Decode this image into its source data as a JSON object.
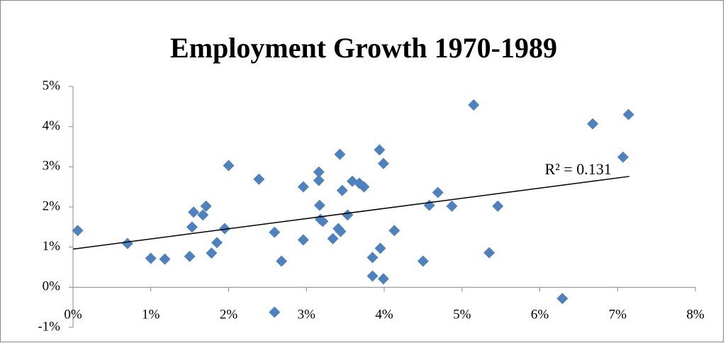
{
  "chart_data": {
    "type": "scatter",
    "title": "Employment Growth 1970-1989",
    "series": [
      {
        "color": "#4f81bd",
        "x": [
          0.06,
          0.7,
          1.0,
          1.18,
          1.5,
          1.53,
          1.55,
          1.67,
          1.71,
          1.78,
          1.85,
          1.95,
          2.0,
          2.39,
          2.59,
          2.59,
          2.68,
          2.96,
          2.96,
          3.16,
          3.16,
          3.17,
          3.18,
          3.21,
          3.34,
          3.41,
          3.44,
          3.43,
          3.46,
          3.53,
          3.59,
          3.68,
          3.74,
          3.85,
          3.85,
          3.94,
          3.95,
          3.99,
          3.99,
          4.13,
          4.5,
          4.58,
          4.69,
          4.87,
          5.15,
          5.35,
          5.46,
          6.29,
          6.68,
          7.07,
          7.14
        ],
        "values": [
          1.41,
          1.09,
          0.72,
          0.7,
          0.77,
          1.5,
          1.87,
          1.8,
          2.02,
          0.85,
          1.11,
          1.46,
          3.03,
          2.69,
          -0.62,
          1.37,
          0.65,
          2.5,
          1.18,
          2.87,
          2.66,
          2.04,
          1.69,
          1.64,
          1.21,
          1.46,
          1.39,
          3.31,
          2.41,
          1.8,
          2.64,
          2.59,
          2.5,
          0.74,
          0.28,
          3.42,
          0.97,
          3.08,
          0.21,
          1.41,
          0.65,
          2.04,
          2.36,
          2.02,
          4.54,
          0.86,
          2.02,
          -0.28,
          4.07,
          3.24,
          4.3
        ]
      }
    ],
    "trendline": {
      "x": [
        0,
        7.15
      ],
      "values": [
        0.95,
        2.76
      ],
      "label": "R² = 0.131",
      "color": "#000000"
    },
    "xlim": [
      0,
      8
    ],
    "xticks": [
      {
        "value": 0,
        "label": "0%"
      },
      {
        "value": 1,
        "label": "1%"
      },
      {
        "value": 2,
        "label": "2%"
      },
      {
        "value": 3,
        "label": "3%"
      },
      {
        "value": 4,
        "label": "4%"
      },
      {
        "value": 5,
        "label": "5%"
      },
      {
        "value": 6,
        "label": "6%"
      },
      {
        "value": 7,
        "label": "7%"
      },
      {
        "value": 8,
        "label": "8%"
      }
    ],
    "ylim": [
      -1,
      5
    ],
    "yticks": [
      {
        "value": -1,
        "label": "-1%"
      },
      {
        "value": 0,
        "label": "0%"
      },
      {
        "value": 1,
        "label": "1%"
      },
      {
        "value": 2,
        "label": "2%"
      },
      {
        "value": 3,
        "label": "3%"
      },
      {
        "value": 4,
        "label": "4%"
      },
      {
        "value": 5,
        "label": "5%"
      }
    ],
    "grid": false
  }
}
